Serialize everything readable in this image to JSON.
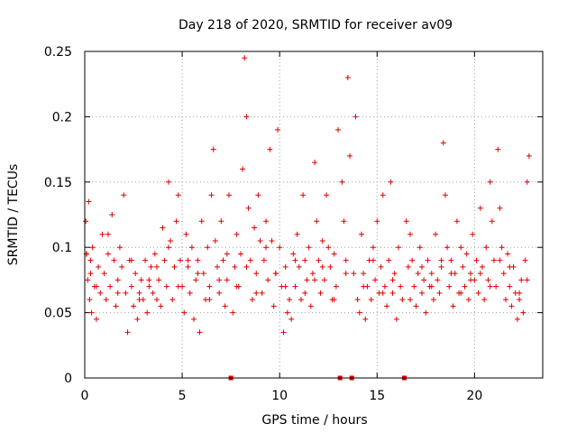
{
  "chart_data": {
    "type": "scatter",
    "title": "Day 218 of 2020, SRMTID for receiver av09",
    "xlabel": "GPS time / hours",
    "ylabel": "SRMTID / TECUs",
    "xlim": [
      0,
      23.5
    ],
    "ylim": [
      0,
      0.25
    ],
    "xticks": [
      0,
      5,
      10,
      15,
      20
    ],
    "yticks": [
      0,
      0.05,
      0.1,
      0.15,
      0.2,
      0.25
    ],
    "xtick_labels": [
      "0",
      "5",
      "10",
      "15",
      "20"
    ],
    "ytick_labels": [
      "0",
      "0.05",
      "0.1",
      "0.15",
      "0.2",
      "0.25"
    ],
    "grid": true,
    "marker": "+",
    "color": "#e00000",
    "zero_markers_x": [
      7.5,
      13.1,
      13.7,
      16.4
    ],
    "series": [
      {
        "name": "SRMTID",
        "x": [
          0.05,
          0.1,
          0.15,
          0.2,
          0.25,
          0.3,
          0.35,
          0.4,
          0.5,
          0.6,
          0.7,
          0.8,
          0.9,
          1.0,
          1.1,
          1.2,
          1.3,
          1.4,
          1.5,
          1.6,
          1.7,
          1.8,
          1.9,
          2.0,
          2.1,
          2.2,
          2.3,
          2.4,
          2.5,
          2.6,
          2.7,
          2.8,
          2.9,
          3.0,
          3.1,
          3.2,
          3.3,
          3.4,
          3.5,
          3.6,
          3.7,
          3.8,
          3.9,
          4.0,
          4.1,
          4.2,
          4.3,
          4.4,
          4.5,
          4.6,
          4.7,
          4.8,
          4.9,
          5.0,
          5.1,
          5.2,
          5.3,
          5.4,
          5.5,
          5.6,
          5.7,
          5.8,
          5.9,
          6.0,
          6.1,
          6.2,
          6.3,
          6.4,
          6.5,
          6.6,
          6.7,
          6.8,
          6.9,
          7.0,
          7.1,
          7.2,
          7.3,
          7.4,
          7.6,
          7.7,
          7.8,
          7.9,
          8.0,
          8.1,
          8.2,
          8.3,
          8.4,
          8.5,
          8.6,
          8.7,
          8.8,
          8.9,
          9.0,
          9.1,
          9.2,
          9.3,
          9.4,
          9.5,
          9.6,
          9.7,
          9.8,
          9.9,
          10.0,
          10.1,
          10.2,
          10.3,
          10.4,
          10.5,
          10.6,
          10.7,
          10.8,
          10.9,
          11.0,
          11.1,
          11.2,
          11.3,
          11.4,
          11.5,
          11.6,
          11.7,
          11.8,
          11.9,
          12.0,
          12.1,
          12.2,
          12.3,
          12.4,
          12.5,
          12.6,
          12.7,
          12.8,
          12.9,
          13.0,
          13.2,
          13.3,
          13.4,
          13.5,
          13.6,
          13.8,
          13.9,
          14.0,
          14.1,
          14.2,
          14.3,
          14.4,
          14.5,
          14.6,
          14.7,
          14.8,
          14.9,
          15.0,
          15.1,
          15.2,
          15.3,
          15.4,
          15.5,
          15.6,
          15.7,
          15.8,
          15.9,
          16.0,
          16.1,
          16.2,
          16.3,
          16.5,
          16.6,
          16.7,
          16.8,
          16.9,
          17.0,
          17.1,
          17.2,
          17.3,
          17.4,
          17.5,
          17.6,
          17.7,
          17.8,
          17.9,
          18.0,
          18.1,
          18.2,
          18.3,
          18.4,
          18.5,
          18.6,
          18.7,
          18.8,
          18.9,
          19.0,
          19.1,
          19.2,
          19.3,
          19.4,
          19.5,
          19.6,
          19.7,
          19.8,
          19.9,
          20.0,
          20.1,
          20.2,
          20.3,
          20.4,
          20.5,
          20.6,
          20.7,
          20.8,
          20.9,
          21.0,
          21.1,
          21.2,
          21.3,
          21.4,
          21.5,
          21.6,
          21.7,
          21.8,
          21.9,
          22.0,
          22.1,
          22.2,
          22.3,
          22.4,
          22.5,
          22.6,
          22.7,
          22.8,
          0.08,
          0.3,
          0.6,
          1.2,
          1.7,
          2.4,
          2.8,
          3.3,
          3.7,
          4.3,
          4.8,
          5.3,
          5.8,
          6.4,
          6.9,
          7.3,
          7.8,
          8.3,
          8.8,
          9.3,
          9.8,
          10.3,
          10.8,
          11.3,
          11.8,
          12.2,
          12.8,
          13.4,
          14.3,
          14.8,
          15.3,
          15.8,
          16.7,
          17.3,
          17.8,
          18.3,
          18.8,
          19.3,
          19.8,
          20.3,
          20.8,
          21.3,
          21.8,
          22.3,
          22.7
        ],
        "y": [
          0.12,
          0.095,
          0.075,
          0.135,
          0.06,
          0.09,
          0.05,
          0.1,
          0.07,
          0.045,
          0.085,
          0.065,
          0.11,
          0.08,
          0.06,
          0.095,
          0.07,
          0.125,
          0.09,
          0.055,
          0.075,
          0.1,
          0.085,
          0.14,
          0.065,
          0.035,
          0.09,
          0.07,
          0.055,
          0.08,
          0.045,
          0.065,
          0.075,
          0.06,
          0.09,
          0.05,
          0.07,
          0.085,
          0.065,
          0.095,
          0.06,
          0.075,
          0.055,
          0.115,
          0.09,
          0.07,
          0.15,
          0.105,
          0.06,
          0.085,
          0.12,
          0.14,
          0.09,
          0.07,
          0.05,
          0.11,
          0.085,
          0.065,
          0.1,
          0.045,
          0.075,
          0.09,
          0.035,
          0.12,
          0.08,
          0.06,
          0.1,
          0.07,
          0.14,
          0.175,
          0.105,
          0.085,
          0.065,
          0.12,
          0.09,
          0.055,
          0.075,
          0.14,
          0.05,
          0.085,
          0.11,
          0.07,
          0.095,
          0.16,
          0.245,
          0.2,
          0.13,
          0.09,
          0.06,
          0.115,
          0.08,
          0.14,
          0.105,
          0.065,
          0.09,
          0.12,
          0.075,
          0.175,
          0.105,
          0.055,
          0.08,
          0.19,
          0.1,
          0.07,
          0.035,
          0.085,
          0.05,
          0.06,
          0.045,
          0.095,
          0.07,
          0.11,
          0.085,
          0.06,
          0.14,
          0.09,
          0.075,
          0.1,
          0.055,
          0.08,
          0.165,
          0.12,
          0.09,
          0.065,
          0.105,
          0.075,
          0.14,
          0.1,
          0.085,
          0.06,
          0.095,
          0.07,
          0.19,
          0.15,
          0.12,
          0.09,
          0.23,
          0.17,
          0.08,
          0.2,
          0.06,
          0.05,
          0.11,
          0.08,
          0.045,
          0.07,
          0.09,
          0.06,
          0.1,
          0.075,
          0.12,
          0.065,
          0.085,
          0.14,
          0.07,
          0.055,
          0.09,
          0.15,
          0.065,
          0.08,
          0.045,
          0.1,
          0.07,
          0.06,
          0.12,
          0.085,
          0.11,
          0.09,
          0.07,
          0.055,
          0.08,
          0.1,
          0.065,
          0.075,
          0.05,
          0.09,
          0.07,
          0.08,
          0.06,
          0.11,
          0.075,
          0.065,
          0.085,
          0.18,
          0.14,
          0.1,
          0.07,
          0.09,
          0.055,
          0.08,
          0.12,
          0.065,
          0.1,
          0.085,
          0.07,
          0.095,
          0.06,
          0.08,
          0.11,
          0.075,
          0.09,
          0.065,
          0.13,
          0.085,
          0.06,
          0.1,
          0.075,
          0.15,
          0.12,
          0.09,
          0.07,
          0.175,
          0.13,
          0.1,
          0.08,
          0.06,
          0.095,
          0.07,
          0.055,
          0.085,
          0.065,
          0.045,
          0.06,
          0.075,
          0.05,
          0.09,
          0.15,
          0.17,
          0.095,
          0.08,
          0.07,
          0.11,
          0.065,
          0.09,
          0.06,
          0.075,
          0.085,
          0.1,
          0.07,
          0.09,
          0.08,
          0.06,
          0.075,
          0.095,
          0.07,
          0.085,
          0.065,
          0.1,
          0.08,
          0.07,
          0.09,
          0.065,
          0.075,
          0.085,
          0.06,
          0.08,
          0.07,
          0.09,
          0.065,
          0.075,
          0.06,
          0.085,
          0.07,
          0.09,
          0.08,
          0.065,
          0.075,
          0.08,
          0.07,
          0.09,
          0.085,
          0.065,
          0.075
        ]
      }
    ]
  }
}
